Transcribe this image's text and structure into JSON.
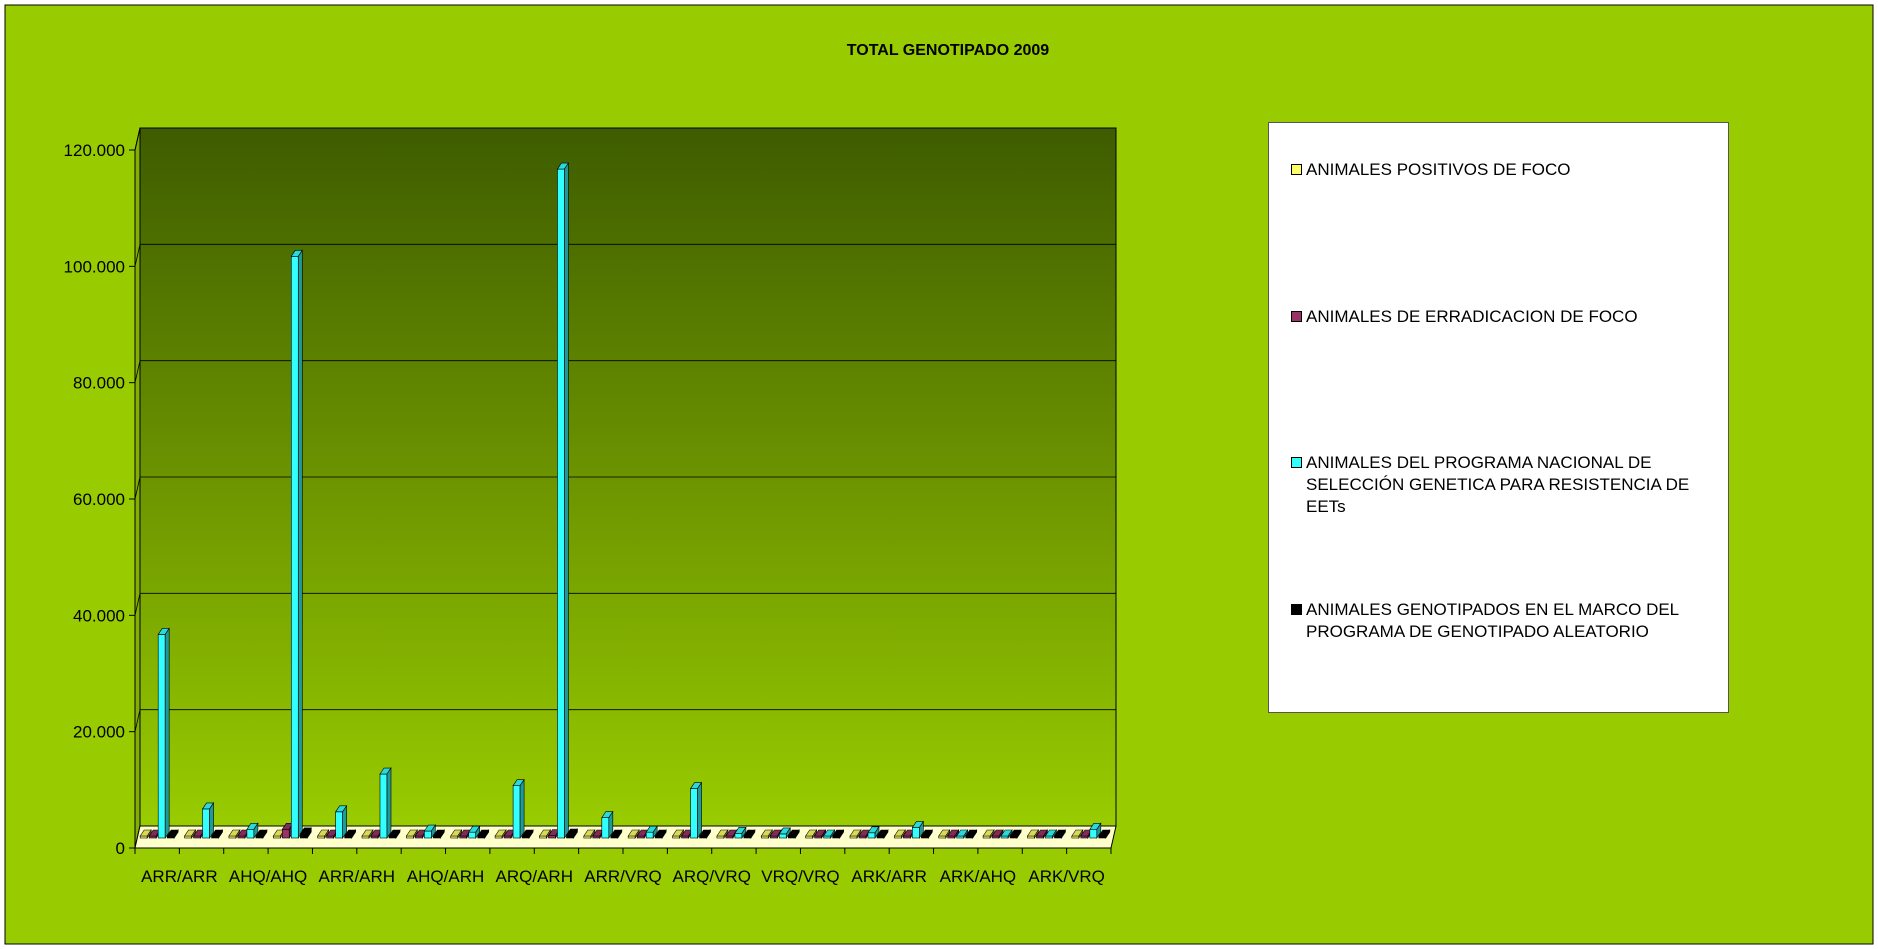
{
  "chart_data": {
    "type": "bar",
    "title": "TOTAL GENOTIPADO 2009",
    "xlabel": "",
    "ylabel": "",
    "ylim": [
      0,
      120000
    ],
    "yticks": [
      "0",
      "20.000",
      "40.000",
      "60.000",
      "80.000",
      "100.000",
      "120.000"
    ],
    "ytick_values": [
      0,
      20000,
      40000,
      60000,
      80000,
      100000,
      120000
    ],
    "categories": [
      "ARR/ARR",
      "",
      "AHQ/AHQ",
      "",
      "ARR/ARH",
      "",
      "AHQ/ARH",
      "",
      "ARQ/ARH",
      "",
      "ARR/VRQ",
      "",
      "ARQ/VRQ",
      "",
      "VRQ/VRQ",
      "",
      "ARK/ARR",
      "",
      "ARK/AHQ",
      "",
      "ARK/VRQ",
      ""
    ],
    "grid": true,
    "legend_position": "right",
    "series": [
      {
        "name": "ANIMALES POSITIVOS DE FOCO",
        "color": "#FFFF66",
        "values": [
          50,
          20,
          10,
          150,
          30,
          20,
          10,
          30,
          100,
          150,
          20,
          10,
          300,
          10,
          5,
          5,
          5,
          5,
          5,
          5,
          5,
          5
        ]
      },
      {
        "name": "ANIMALES DE ERRADICACION DE FOCO",
        "color": "#993366",
        "values": [
          300,
          100,
          100,
          1500,
          200,
          300,
          50,
          150,
          300,
          400,
          100,
          50,
          200,
          50,
          50,
          30,
          30,
          20,
          20,
          10,
          10,
          10
        ]
      },
      {
        "name": "ANIMALES DEL PROGRAMA NACIONAL DE SELECCIÓN GENETICA PARA RESISTENCIA DE EETs",
        "color": "#33FFFF",
        "values": [
          35000,
          5000,
          1500,
          100000,
          4500,
          11000,
          1200,
          1000,
          9000,
          115000,
          3500,
          1000,
          8500,
          800,
          700,
          300,
          900,
          1800,
          300,
          200,
          300,
          1500
        ]
      },
      {
        "name": "ANIMALES GENOTIPADOS EN EL MARCO DEL PROGRAMA DE GENOTIPADO ALEATORIO",
        "color": "#000000",
        "values": [
          200,
          100,
          100,
          700,
          150,
          200,
          50,
          100,
          200,
          500,
          100,
          50,
          150,
          50,
          50,
          30,
          30,
          20,
          20,
          10,
          10,
          10
        ]
      }
    ]
  },
  "colors": {
    "background": "#99CC00",
    "plot_top": "#3E5C00",
    "plot_bottom": "#99CC00",
    "floor": "#FFFFCC"
  }
}
